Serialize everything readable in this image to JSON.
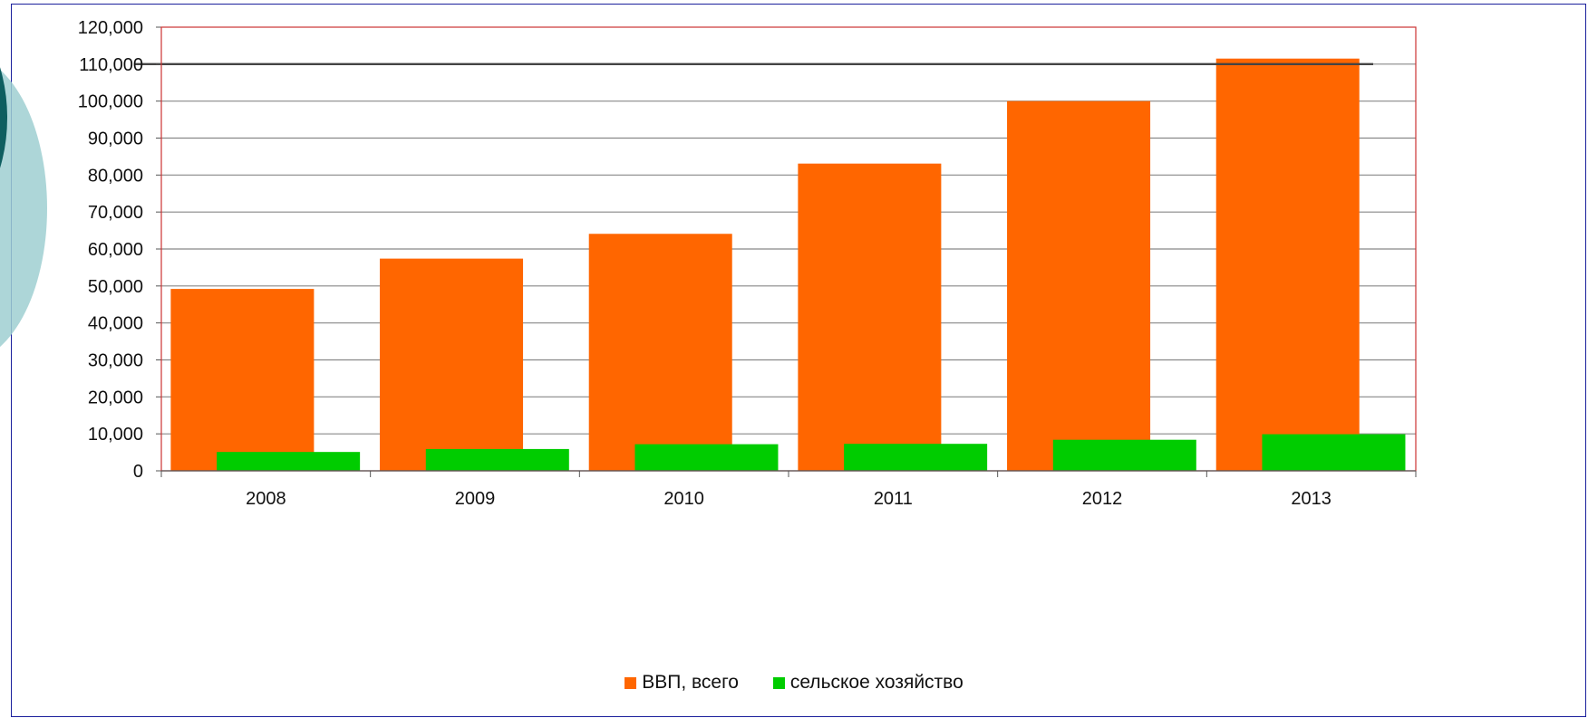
{
  "chart_data": {
    "type": "bar",
    "title": "",
    "xlabel": "",
    "ylabel": "",
    "categories": [
      "2008",
      "2009",
      "2010",
      "2011",
      "2012",
      "2013"
    ],
    "series": [
      {
        "name": "ВВП, всего",
        "color": "#ff6600",
        "values": [
          49200,
          57400,
          64100,
          83100,
          100000,
          111500
        ]
      },
      {
        "name": "сельское хозяйство",
        "color": "#00cc00",
        "values": [
          5100,
          5900,
          7200,
          7300,
          8400,
          9900
        ]
      }
    ],
    "ylim": [
      0,
      120000
    ],
    "yticks": [
      "0",
      "10,000",
      "20,000",
      "30,000",
      "40,000",
      "50,000",
      "60,000",
      "70,000",
      "80,000",
      "90,000",
      "100,000",
      "110,000",
      "120,000"
    ],
    "grid": true,
    "legend_position": "bottom",
    "reference_line_value": 110000
  },
  "colors": {
    "frame": "#1a1f9c",
    "plot_border": "#cc3333",
    "gridline": "#888888",
    "decor_dark": "#0e5f60",
    "decor_light": "#9fcfd1"
  }
}
